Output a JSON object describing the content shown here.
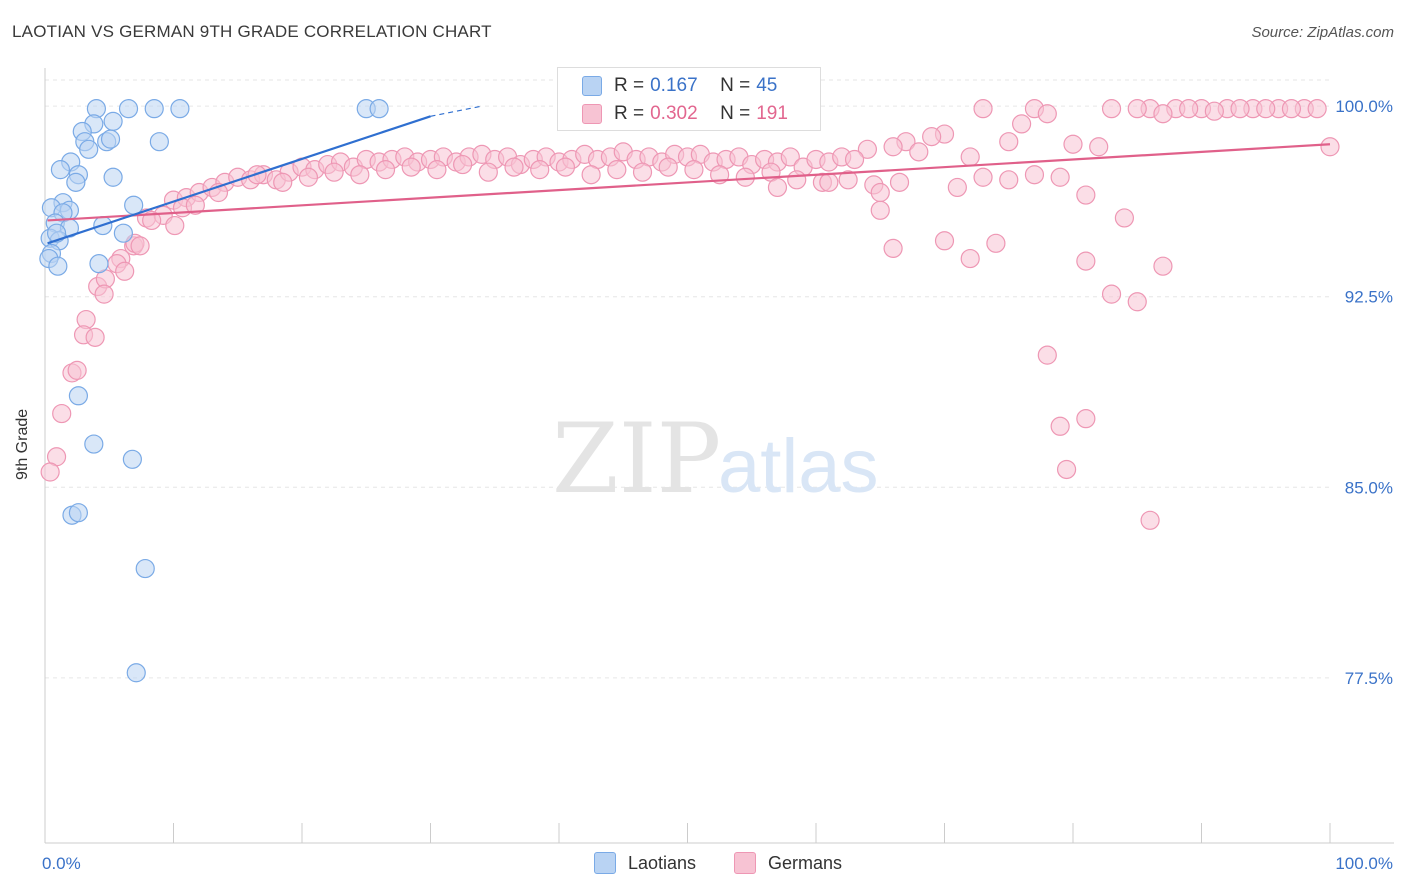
{
  "title": "LAOTIAN VS GERMAN 9TH GRADE CORRELATION CHART",
  "source": "Source: ZipAtlas.com",
  "watermark": {
    "zip": "ZIP",
    "atlas": "atlas"
  },
  "legend": {
    "laotians": {
      "r_label": "R = ",
      "r_value": "0.167",
      "n_label": "N = ",
      "n_value": "45"
    },
    "germans": {
      "r_label": "R = ",
      "r_value": "0.302",
      "n_label": "N = ",
      "n_value": "191"
    }
  },
  "bottom_legend": {
    "laotians": "Laotians",
    "germans": "Germans"
  },
  "colors": {
    "blue_fill": "#b9d3f3",
    "blue_stroke": "#7aaae6",
    "blue_line": "#2f6fd0",
    "pink_fill": "#f7c3d3",
    "pink_stroke": "#ee97b4",
    "pink_line": "#e0608a",
    "axis_text": "#3a72c8",
    "grid": "#e6e6e6"
  },
  "chart_data": {
    "type": "scatter",
    "title": "LAOTIAN VS GERMAN 9TH GRADE CORRELATION CHART",
    "xlabel": "",
    "ylabel": "9th Grade",
    "xlim": [
      0,
      100
    ],
    "ylim": [
      71.0,
      101.5
    ],
    "x_tick_labels": [
      "0.0%",
      "100.0%"
    ],
    "y_ticks": [
      100.0,
      92.5,
      85.0,
      77.5
    ],
    "y_tick_labels": [
      "100.0%",
      "92.5%",
      "85.0%",
      "77.5%"
    ],
    "series": [
      {
        "name": "Laotians",
        "r": 0.167,
        "n": 45,
        "trend": {
          "x0": 0.2,
          "y0": 94.6,
          "x1": 30.0,
          "y1": 99.6,
          "dash_to_x": 34.0,
          "dash_to_y": 100.0
        },
        "points": [
          [
            4,
            99.9
          ],
          [
            6.5,
            99.9
          ],
          [
            8.5,
            99.9
          ],
          [
            10.5,
            99.9
          ],
          [
            25,
            99.9
          ],
          [
            26,
            99.9
          ],
          [
            3.8,
            99.3
          ],
          [
            5.3,
            99.4
          ],
          [
            2.9,
            99.0
          ],
          [
            3.1,
            98.6
          ],
          [
            4.8,
            98.6
          ],
          [
            5.1,
            98.7
          ],
          [
            8.9,
            98.6
          ],
          [
            3.4,
            98.3
          ],
          [
            2.0,
            97.8
          ],
          [
            1.2,
            97.5
          ],
          [
            2.6,
            97.3
          ],
          [
            5.3,
            97.2
          ],
          [
            2.4,
            97.0
          ],
          [
            1.4,
            96.2
          ],
          [
            0.5,
            96.0
          ],
          [
            1.9,
            95.9
          ],
          [
            1.4,
            95.8
          ],
          [
            6.9,
            96.1
          ],
          [
            0.8,
            95.4
          ],
          [
            1.9,
            95.2
          ],
          [
            4.5,
            95.3
          ],
          [
            6.1,
            95.0
          ],
          [
            0.4,
            94.8
          ],
          [
            1.1,
            94.7
          ],
          [
            0.9,
            95.0
          ],
          [
            0.5,
            94.2
          ],
          [
            0.3,
            94.0
          ],
          [
            1.0,
            93.7
          ],
          [
            4.2,
            93.8
          ],
          [
            2.6,
            88.6
          ],
          [
            3.8,
            86.7
          ],
          [
            6.8,
            86.1
          ],
          [
            2.1,
            83.9
          ],
          [
            2.6,
            84.0
          ],
          [
            7.8,
            81.8
          ],
          [
            7.1,
            77.7
          ]
        ]
      },
      {
        "name": "Germans",
        "r": 0.302,
        "n": 191,
        "trend": {
          "x0": 0.2,
          "y0": 95.5,
          "x1": 100.0,
          "y1": 98.5
        },
        "points": [
          [
            73,
            99.9
          ],
          [
            77,
            99.9
          ],
          [
            78,
            99.7
          ],
          [
            83,
            99.9
          ],
          [
            86,
            99.9
          ],
          [
            88,
            99.9
          ],
          [
            90,
            99.9
          ],
          [
            92,
            99.9
          ],
          [
            94,
            99.9
          ],
          [
            96,
            99.9
          ],
          [
            98,
            99.9
          ],
          [
            87,
            99.7
          ],
          [
            89,
            99.9
          ],
          [
            91,
            99.8
          ],
          [
            93,
            99.9
          ],
          [
            95,
            99.9
          ],
          [
            97,
            99.9
          ],
          [
            85,
            99.9
          ],
          [
            99,
            99.9
          ],
          [
            76,
            99.3
          ],
          [
            70,
            98.9
          ],
          [
            69,
            98.8
          ],
          [
            75,
            98.6
          ],
          [
            80,
            98.5
          ],
          [
            82,
            98.4
          ],
          [
            100,
            98.4
          ],
          [
            67,
            98.6
          ],
          [
            68,
            98.2
          ],
          [
            66,
            98.4
          ],
          [
            64,
            98.3
          ],
          [
            72,
            98.0
          ],
          [
            10,
            96.3
          ],
          [
            11,
            96.4
          ],
          [
            12,
            96.6
          ],
          [
            13,
            96.8
          ],
          [
            14,
            97.0
          ],
          [
            15,
            97.2
          ],
          [
            16,
            97.1
          ],
          [
            17,
            97.3
          ],
          [
            18,
            97.1
          ],
          [
            19,
            97.4
          ],
          [
            20,
            97.6
          ],
          [
            21,
            97.5
          ],
          [
            22,
            97.7
          ],
          [
            23,
            97.8
          ],
          [
            24,
            97.6
          ],
          [
            25,
            97.9
          ],
          [
            26,
            97.8
          ],
          [
            27,
            97.9
          ],
          [
            28,
            98.0
          ],
          [
            29,
            97.8
          ],
          [
            30,
            97.9
          ],
          [
            31,
            98.0
          ],
          [
            32,
            97.8
          ],
          [
            33,
            98.0
          ],
          [
            34,
            98.1
          ],
          [
            35,
            97.9
          ],
          [
            36,
            98.0
          ],
          [
            37,
            97.7
          ],
          [
            38,
            97.9
          ],
          [
            39,
            98.0
          ],
          [
            40,
            97.8
          ],
          [
            41,
            97.9
          ],
          [
            42,
            98.1
          ],
          [
            43,
            97.9
          ],
          [
            44,
            98.0
          ],
          [
            45,
            98.2
          ],
          [
            46,
            97.9
          ],
          [
            47,
            98.0
          ],
          [
            48,
            97.8
          ],
          [
            49,
            98.1
          ],
          [
            50,
            98.0
          ],
          [
            51,
            98.1
          ],
          [
            52,
            97.8
          ],
          [
            53,
            97.9
          ],
          [
            54,
            98.0
          ],
          [
            55,
            97.7
          ],
          [
            56,
            97.9
          ],
          [
            57,
            97.8
          ],
          [
            58,
            98.0
          ],
          [
            59,
            97.6
          ],
          [
            60,
            97.9
          ],
          [
            61,
            97.8
          ],
          [
            62,
            98.0
          ],
          [
            63,
            97.9
          ],
          [
            13.5,
            96.6
          ],
          [
            16.5,
            97.3
          ],
          [
            18.5,
            97.0
          ],
          [
            20.5,
            97.2
          ],
          [
            22.5,
            97.4
          ],
          [
            24.5,
            97.3
          ],
          [
            26.5,
            97.5
          ],
          [
            28.5,
            97.6
          ],
          [
            30.5,
            97.5
          ],
          [
            32.5,
            97.7
          ],
          [
            34.5,
            97.4
          ],
          [
            36.5,
            97.6
          ],
          [
            38.5,
            97.5
          ],
          [
            40.5,
            97.6
          ],
          [
            42.5,
            97.3
          ],
          [
            44.5,
            97.5
          ],
          [
            46.5,
            97.4
          ],
          [
            48.5,
            97.6
          ],
          [
            50.5,
            97.5
          ],
          [
            52.5,
            97.3
          ],
          [
            54.5,
            97.2
          ],
          [
            56.5,
            97.4
          ],
          [
            58.5,
            97.1
          ],
          [
            60.5,
            97.0
          ],
          [
            62.5,
            97.1
          ],
          [
            64.5,
            96.9
          ],
          [
            66.5,
            97.0
          ],
          [
            57,
            96.8
          ],
          [
            61,
            97.0
          ],
          [
            65,
            96.6
          ],
          [
            73,
            97.2
          ],
          [
            75,
            97.1
          ],
          [
            77,
            97.3
          ],
          [
            79,
            97.2
          ],
          [
            81,
            96.5
          ],
          [
            71,
            96.8
          ],
          [
            7.9,
            95.6
          ],
          [
            9.2,
            95.7
          ],
          [
            10.1,
            95.3
          ],
          [
            10.7,
            96.0
          ],
          [
            11.7,
            96.1
          ],
          [
            8.3,
            95.5
          ],
          [
            6.9,
            94.5
          ],
          [
            7.0,
            94.6
          ],
          [
            7.4,
            94.5
          ],
          [
            5.9,
            94.0
          ],
          [
            5.6,
            93.8
          ],
          [
            6.2,
            93.5
          ],
          [
            4.1,
            92.9
          ],
          [
            3.2,
            91.6
          ],
          [
            4.7,
            93.2
          ],
          [
            3.0,
            91.0
          ],
          [
            3.9,
            90.9
          ],
          [
            4.6,
            92.6
          ],
          [
            2.1,
            89.5
          ],
          [
            2.5,
            89.6
          ],
          [
            1.3,
            87.9
          ],
          [
            0.9,
            86.2
          ],
          [
            0.4,
            85.6
          ],
          [
            65,
            95.9
          ],
          [
            66,
            94.4
          ],
          [
            70,
            94.7
          ],
          [
            72,
            94.0
          ],
          [
            74,
            94.6
          ],
          [
            81,
            93.9
          ],
          [
            84,
            95.6
          ],
          [
            87,
            93.7
          ],
          [
            83,
            92.6
          ],
          [
            85,
            92.3
          ],
          [
            78,
            90.2
          ],
          [
            79,
            87.4
          ],
          [
            81,
            87.7
          ],
          [
            79.5,
            85.7
          ],
          [
            86,
            83.7
          ]
        ]
      }
    ]
  }
}
